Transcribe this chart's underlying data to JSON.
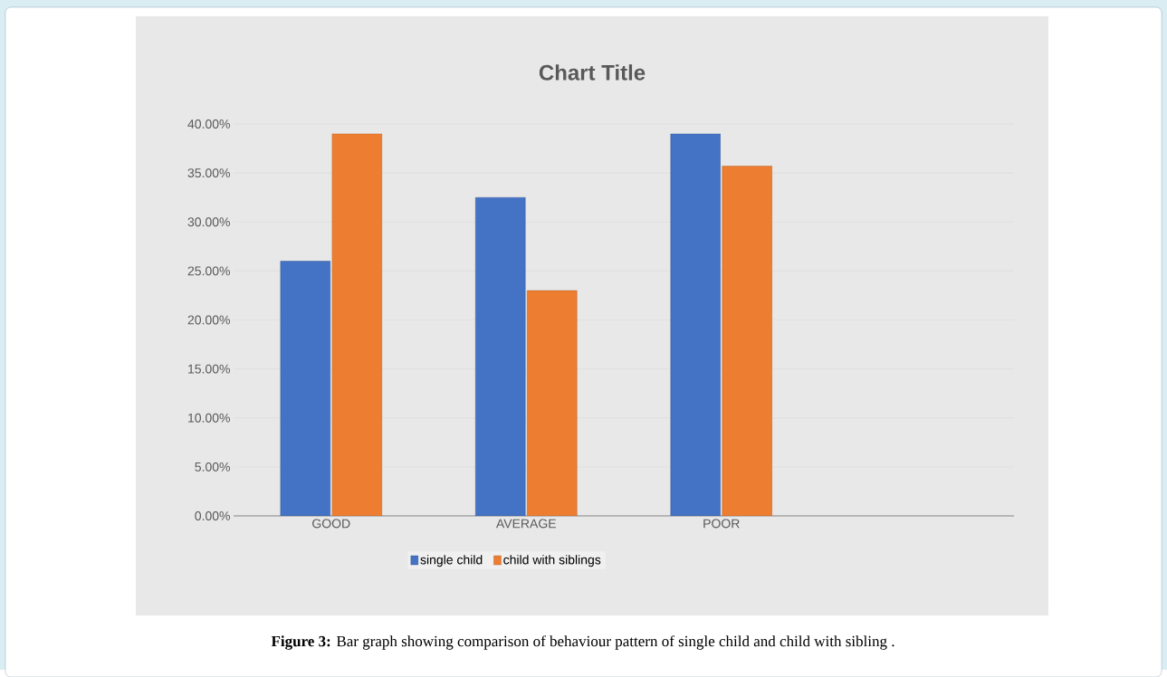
{
  "chart_data": {
    "type": "bar",
    "title": "Chart Title",
    "categories": [
      "GOOD",
      "AVERAGE",
      "POOR"
    ],
    "series": [
      {
        "name": "single child",
        "color": "#4472c4",
        "values": [
          26,
          32.5,
          39
        ]
      },
      {
        "name": "child with siblings",
        "color": "#ed7d31",
        "values": [
          39,
          23,
          35.7
        ]
      }
    ],
    "ylim": [
      0,
      40
    ],
    "yticks": [
      {
        "value": 0,
        "label": "0.00%"
      },
      {
        "value": 5,
        "label": "5.00%"
      },
      {
        "value": 10,
        "label": "10.00%"
      },
      {
        "value": 15,
        "label": "15.00%"
      },
      {
        "value": 20,
        "label": "20.00%"
      },
      {
        "value": 25,
        "label": "25.00%"
      },
      {
        "value": 30,
        "label": "30.00%"
      },
      {
        "value": 35,
        "label": "35.00%"
      },
      {
        "value": 40,
        "label": "40.00%"
      }
    ],
    "grid": "y",
    "legend": "bottom",
    "annotations": [
      "**Figure 3:** Bar graph showing comparison of behaviour pattern of single child and child with sibling ."
    ]
  }
}
